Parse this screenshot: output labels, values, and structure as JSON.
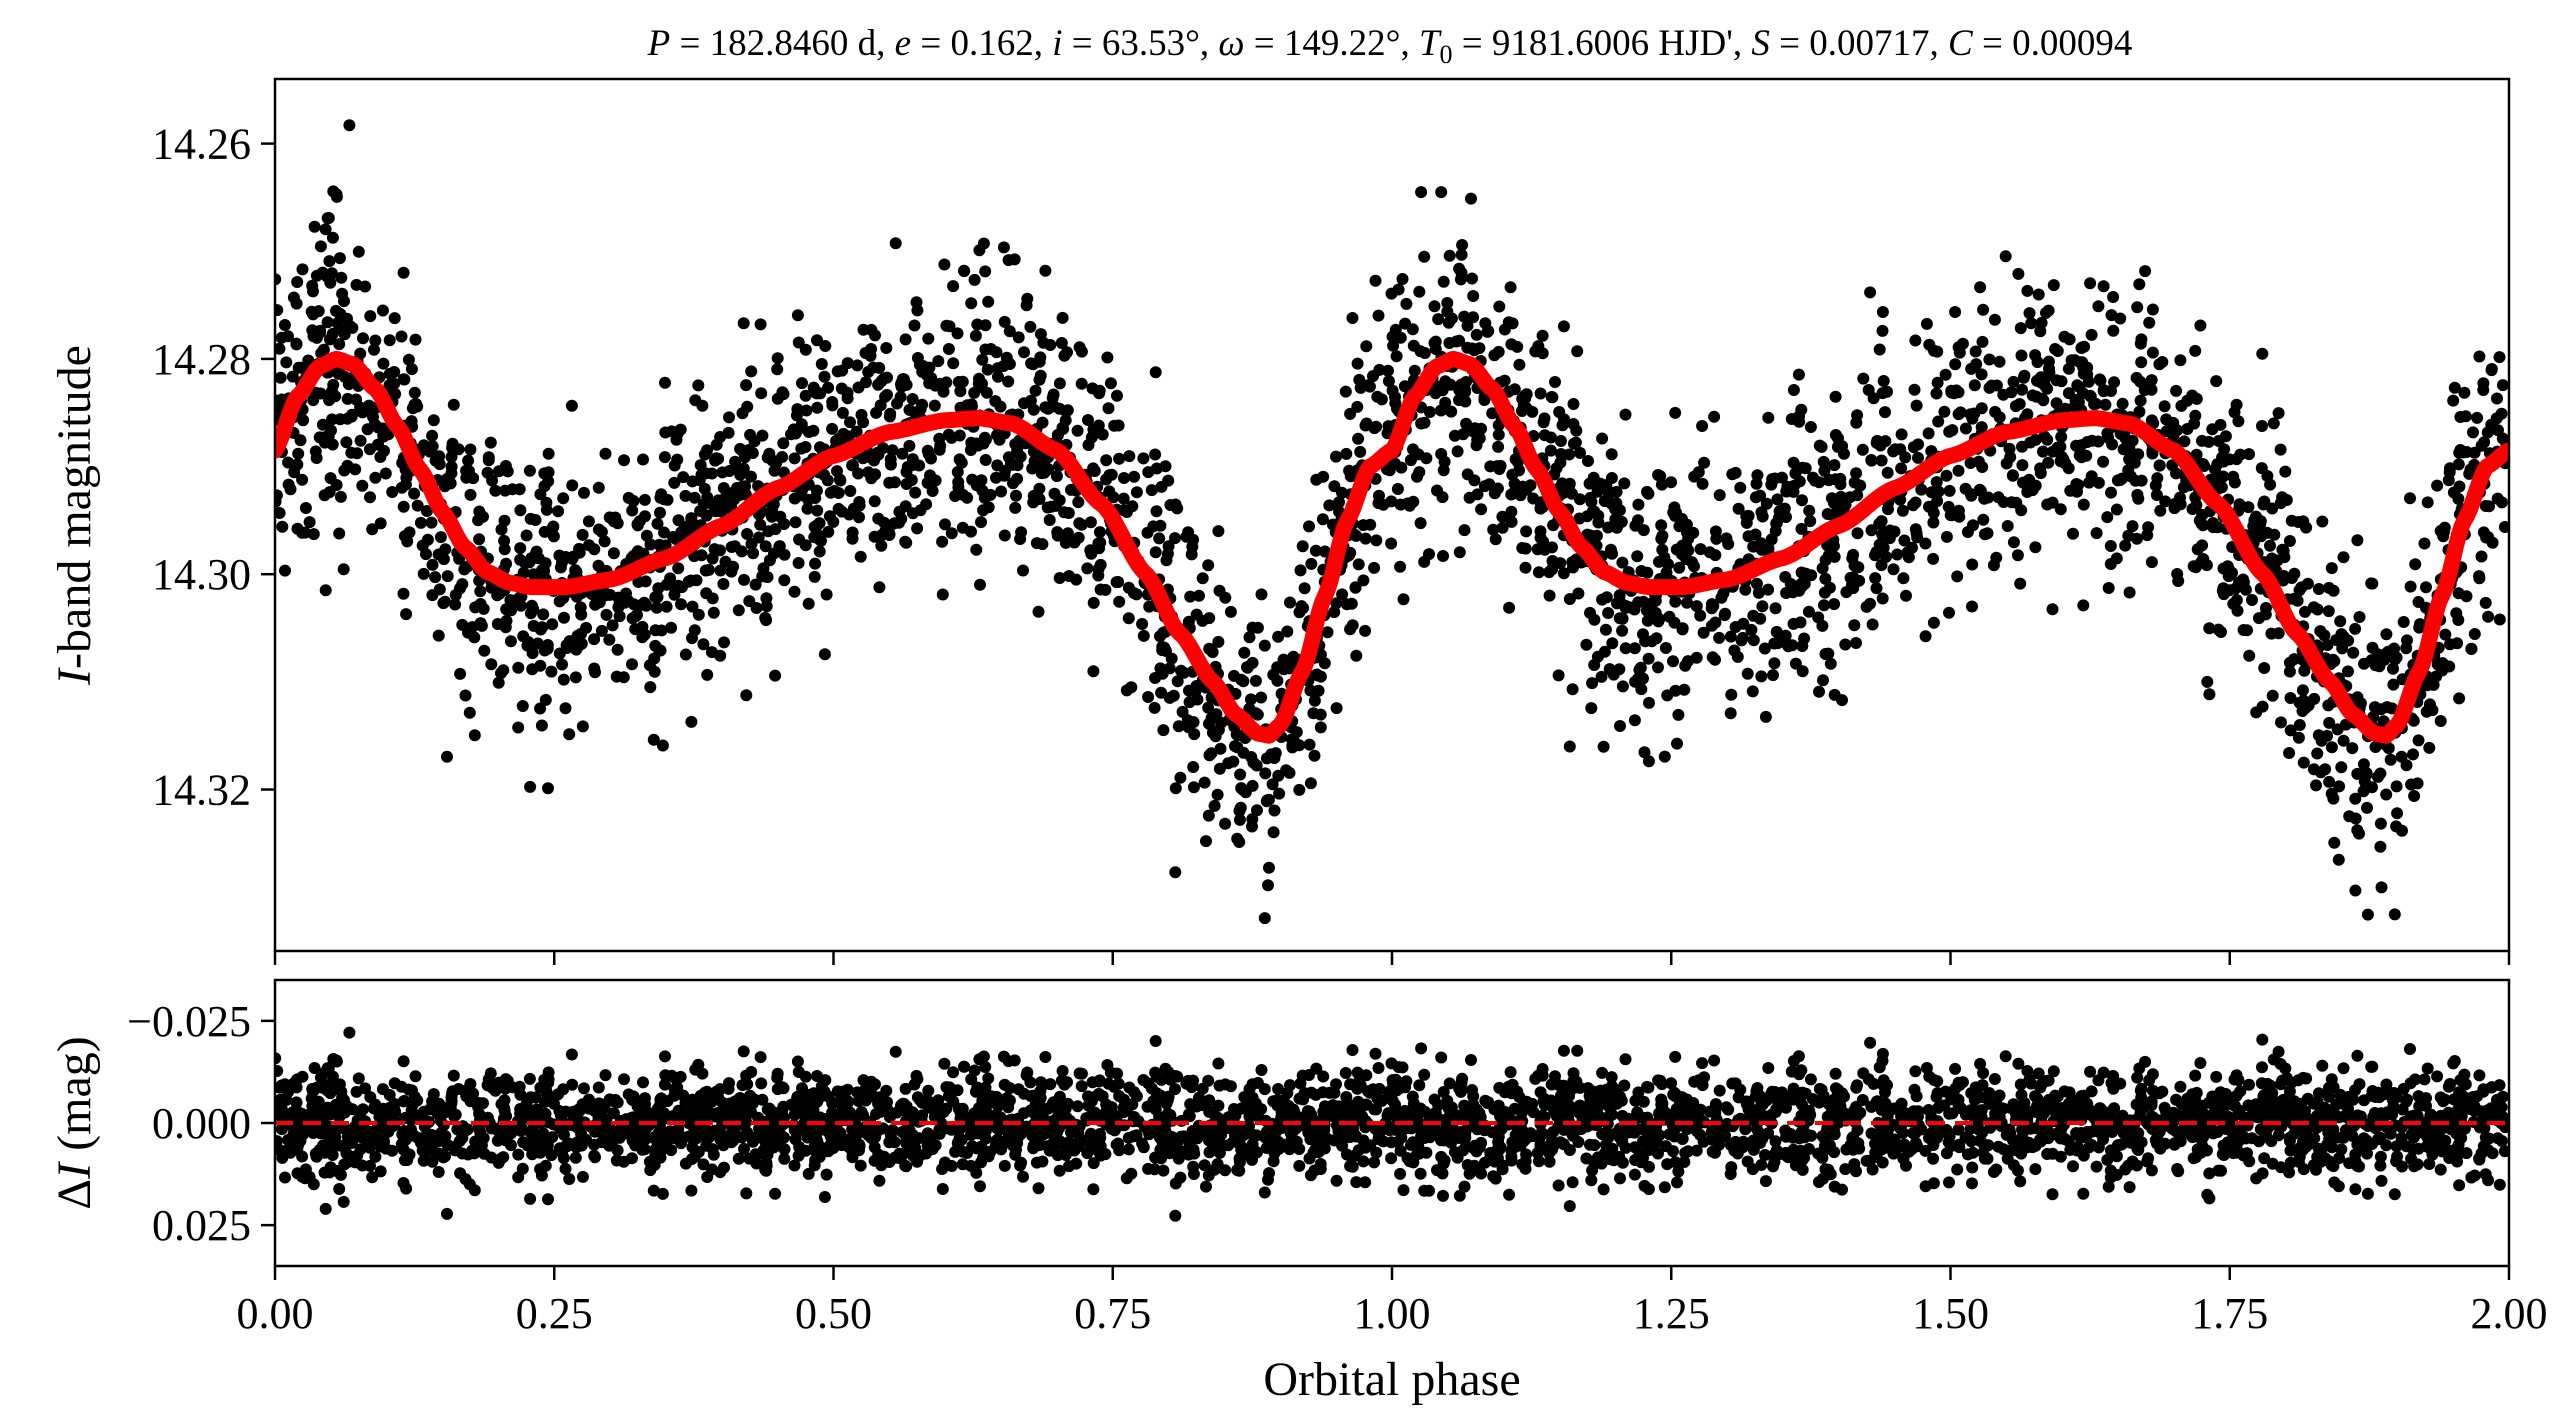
{
  "figure": {
    "title": "P = 182.8460 d, e = 0.162, i = 63.53°, ω = 149.22°, T0 = 9181.6006 HJD', S = 0.00717, C = 0.00094",
    "title_parts": {
      "P_symbol": "P",
      "P_value": " = 182.8460 d, ",
      "e_symbol": "e",
      "e_value": " = 0.162, ",
      "i_symbol": "i",
      "i_value": " = 63.53°, ",
      "omega_symbol": "ω",
      "omega_value": " = 149.22°, ",
      "T_symbol": "T",
      "T_subscript": "0",
      "T_value": " = 9181.6006 HJD', ",
      "S_symbol": "S",
      "S_value": " = 0.00717, ",
      "C_symbol": "C",
      "C_value": " = 0.00094"
    },
    "top_ylabel_symbol": "I",
    "top_ylabel_rest": "-band magnitude",
    "bottom_ylabel_prefix": "Δ",
    "bottom_ylabel_symbol": "I",
    "bottom_ylabel_rest": " (mag)",
    "xlabel": "Orbital phase"
  },
  "chart_data": [
    {
      "panel": "light-curve",
      "type": "scatter",
      "ylabel": "I-band magnitude",
      "x_range": [
        0.0,
        2.0
      ],
      "ylim": [
        14.335,
        14.254
      ],
      "y_inverted": true,
      "y_ticks": [
        14.26,
        14.28,
        14.3,
        14.32
      ],
      "y_tick_labels": [
        "14.26",
        "14.28",
        "14.30",
        "14.32"
      ],
      "x_ticks": [
        0,
        0.25,
        0.5,
        0.75,
        1.0,
        1.25,
        1.5,
        1.75,
        2.0
      ],
      "point_color": "#000000",
      "point_scatter_sigma": 0.0065,
      "model": {
        "name": "orbital model",
        "color": "#ff0000",
        "phase": [
          0.0,
          0.02,
          0.04,
          0.055,
          0.07,
          0.09,
          0.11,
          0.13,
          0.15,
          0.17,
          0.19,
          0.21,
          0.23,
          0.26,
          0.3,
          0.35,
          0.4,
          0.45,
          0.5,
          0.55,
          0.6,
          0.63,
          0.66,
          0.7,
          0.74,
          0.78,
          0.81,
          0.84,
          0.86,
          0.88,
          0.89,
          0.9,
          0.92,
          0.94,
          0.96,
          0.98,
          1.0
        ],
        "magnitude": [
          14.2885,
          14.2835,
          14.2807,
          14.28,
          14.2805,
          14.2828,
          14.2863,
          14.2903,
          14.2942,
          14.2975,
          14.2998,
          14.3008,
          14.3012,
          14.3012,
          14.3005,
          14.2985,
          14.2955,
          14.292,
          14.289,
          14.2868,
          14.2857,
          14.2855,
          14.286,
          14.2885,
          14.2935,
          14.3,
          14.3055,
          14.31,
          14.313,
          14.3148,
          14.315,
          14.314,
          14.309,
          14.302,
          14.295,
          14.29,
          14.2885
        ]
      }
    },
    {
      "panel": "residuals",
      "type": "scatter",
      "ylabel": "ΔI (mag)",
      "xlabel": "Orbital phase",
      "x_range": [
        0.0,
        2.0
      ],
      "ylim": [
        0.035,
        -0.035
      ],
      "y_inverted": true,
      "y_ticks": [
        -0.025,
        0.0,
        0.025
      ],
      "y_tick_labels": [
        "−0.025",
        "0.000",
        "0.025"
      ],
      "x_ticks": [
        0,
        0.25,
        0.5,
        0.75,
        1.0,
        1.25,
        1.5,
        1.75,
        2.0
      ],
      "x_tick_labels": [
        "0.00",
        "0.25",
        "0.50",
        "0.75",
        "1.00",
        "1.25",
        "1.50",
        "1.75",
        "2.00"
      ],
      "point_color": "#000000",
      "point_scatter_sigma": 0.0065,
      "reference_line": {
        "value": 0.0,
        "style": "dashed",
        "color": "#ff0000"
      }
    }
  ]
}
